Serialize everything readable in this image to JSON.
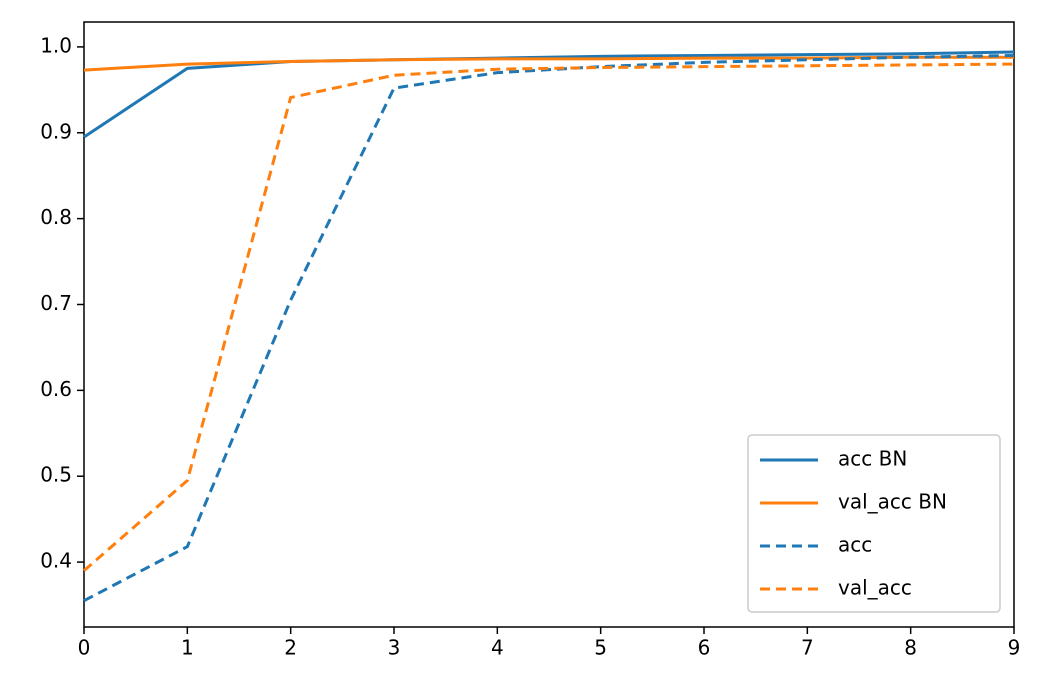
{
  "chart_data": {
    "type": "line",
    "x": [
      0,
      1,
      2,
      3,
      4,
      5,
      6,
      7,
      8,
      9
    ],
    "series": [
      {
        "name": "acc BN",
        "color": "#1f77b4",
        "linestyle": "solid",
        "values": [
          0.895,
          0.975,
          0.983,
          0.985,
          0.987,
          0.989,
          0.99,
          0.991,
          0.992,
          0.994
        ]
      },
      {
        "name": "val_acc BN",
        "color": "#ff7f0e",
        "linestyle": "solid",
        "values": [
          0.973,
          0.98,
          0.983,
          0.985,
          0.986,
          0.986,
          0.987,
          0.987,
          0.988,
          0.988
        ]
      },
      {
        "name": "acc",
        "color": "#1f77b4",
        "linestyle": "dashed",
        "values": [
          0.355,
          0.418,
          0.705,
          0.952,
          0.97,
          0.977,
          0.982,
          0.985,
          0.988,
          0.99
        ]
      },
      {
        "name": "val_acc",
        "color": "#ff7f0e",
        "linestyle": "dashed",
        "values": [
          0.39,
          0.495,
          0.941,
          0.967,
          0.974,
          0.976,
          0.977,
          0.978,
          0.979,
          0.98
        ]
      }
    ],
    "xlim": [
      0,
      9
    ],
    "xticks": [
      0,
      1,
      2,
      3,
      4,
      5,
      6,
      7,
      8,
      9
    ],
    "ylim": [
      0.3244,
      1.029
    ],
    "yticks": [
      0.4,
      0.5,
      0.6,
      0.7,
      0.8,
      0.9,
      {
        "value": 1,
        "label": "1.0"
      }
    ],
    "grid": false,
    "legend": "lower right"
  }
}
